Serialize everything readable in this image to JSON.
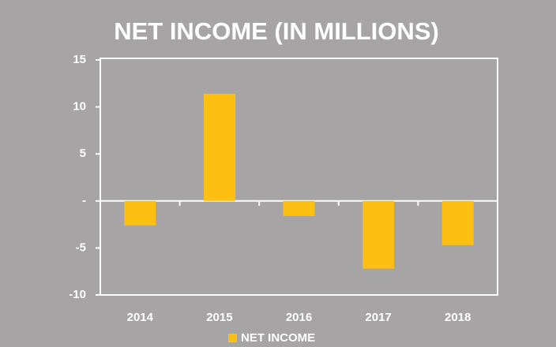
{
  "chart_data": {
    "type": "bar",
    "title": "NET INCOME (IN MILLIONS)",
    "categories": [
      "2014",
      "2015",
      "2016",
      "2017",
      "2018"
    ],
    "series": [
      {
        "name": "NET INCOME",
        "color": "#fdbf12",
        "values": [
          -2.6,
          11.4,
          -1.6,
          -7.2,
          -4.7
        ]
      }
    ],
    "ylim": [
      -10,
      15
    ],
    "yticks": [
      -10,
      -5,
      {
        "value": 0,
        "label": "-"
      },
      5,
      10,
      15
    ],
    "legend": "bottom"
  }
}
